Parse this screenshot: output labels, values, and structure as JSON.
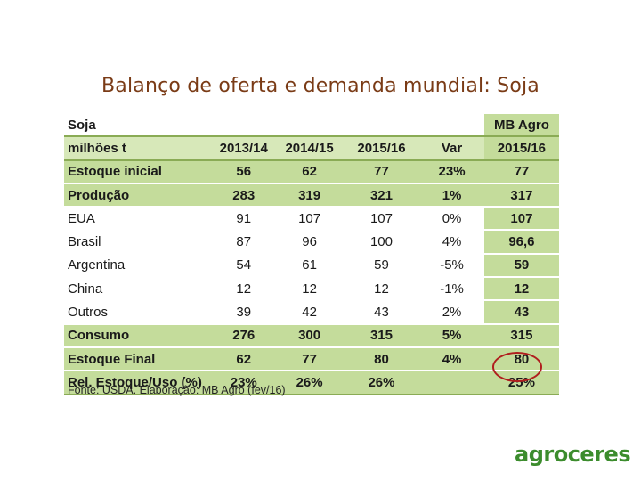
{
  "title": "Balanço de oferta e demanda mundial: Soja",
  "table": {
    "header1": [
      "Soja",
      "",
      "",
      "",
      "",
      "MB Agro"
    ],
    "header2": [
      "milhões t",
      "2013/14",
      "2014/15",
      "2015/16",
      "Var",
      "2015/16"
    ],
    "rows": [
      {
        "cells": [
          "Estoque inicial",
          "56",
          "62",
          "77",
          "23%",
          "77"
        ],
        "highlight": true
      },
      {
        "cells": [
          "Produção",
          "283",
          "319",
          "321",
          "1%",
          "317"
        ],
        "highlight": true
      },
      {
        "cells": [
          "EUA",
          "91",
          "107",
          "107",
          "0%",
          "107"
        ],
        "highlight": false
      },
      {
        "cells": [
          "Brasil",
          "87",
          "96",
          "100",
          "4%",
          "96,6"
        ],
        "highlight": false
      },
      {
        "cells": [
          "Argentina",
          "54",
          "61",
          "59",
          "-5%",
          "59"
        ],
        "highlight": false
      },
      {
        "cells": [
          "China",
          "12",
          "12",
          "12",
          "-1%",
          "12"
        ],
        "highlight": false
      },
      {
        "cells": [
          "Outros",
          "39",
          "42",
          "43",
          "2%",
          "43"
        ],
        "highlight": false
      },
      {
        "cells": [
          "Consumo",
          "276",
          "300",
          "315",
          "5%",
          "315"
        ],
        "highlight": true
      },
      {
        "cells": [
          "Estoque Final",
          "62",
          "77",
          "80",
          "4%",
          "80"
        ],
        "highlight": true
      },
      {
        "cells": [
          "Rel. Estoque/Uso (%)",
          "23%",
          "26%",
          "26%",
          "",
          "25%"
        ],
        "highlight": true
      }
    ]
  },
  "source": "Fonte: USDA. Elaboração: MB Agro (fev/16)",
  "logo": "agroceres",
  "colors": {
    "title": "#7a3b16",
    "highlight_row": "#c4dc9b",
    "header_row": "#d7e8b9",
    "rule": "#8aab55",
    "circle": "#b01e1e",
    "logo": "#3c8c2d"
  }
}
